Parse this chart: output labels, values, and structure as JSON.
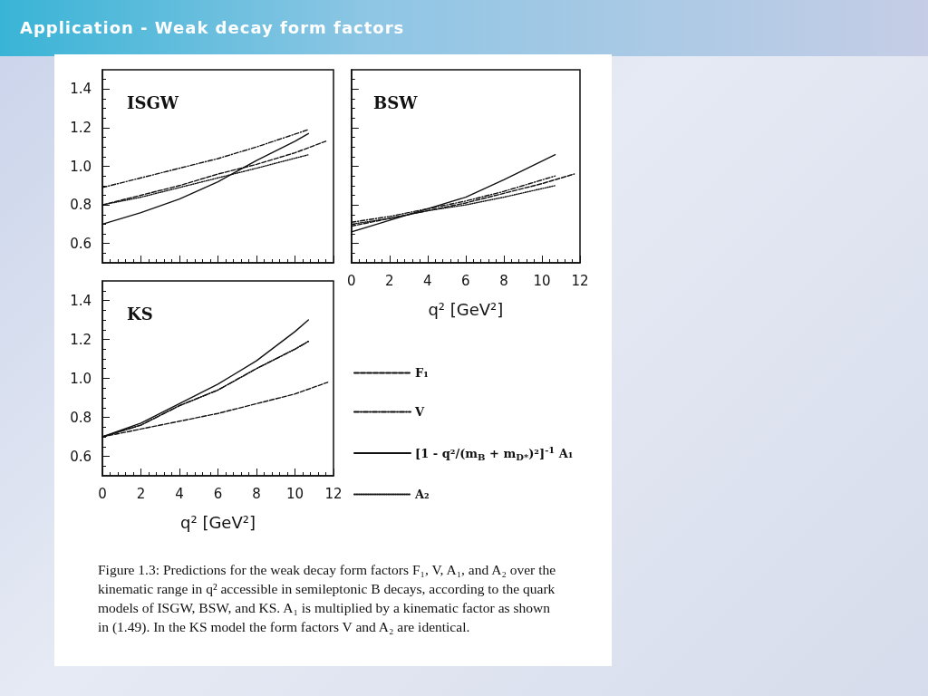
{
  "chart_data": [
    {
      "type": "line",
      "title": "ISGW",
      "annotations": [
        "Application  - Weak decay form factors"
      ],
      "xlim": [
        0,
        12
      ],
      "ylim": [
        0.5,
        1.5
      ],
      "xticks": [
        0,
        2,
        4,
        6,
        8,
        10,
        12
      ],
      "yticks": [
        0.6,
        0.8,
        {
          "value": 1,
          "label": "1.0"
        },
        1.2,
        1.4
      ],
      "tick_labels": "y",
      "grid": false,
      "marker": "none",
      "series": [
        {
          "color": "#111111",
          "line_style": "dashed",
          "x": [
            0,
            2,
            4,
            6,
            8,
            10,
            11.6
          ],
          "values": [
            0.8,
            0.85,
            0.9,
            0.96,
            1.01,
            1.07,
            1.13
          ]
        },
        {
          "color": "#111111",
          "line_style": "dashdot",
          "x": [
            0,
            2,
            4,
            6,
            8,
            10.7
          ],
          "values": [
            0.89,
            0.94,
            0.99,
            1.04,
            1.1,
            1.19
          ]
        },
        {
          "color": "#111111",
          "line_style": "solid",
          "x": [
            0,
            2,
            4,
            6,
            8,
            10,
            10.7
          ],
          "values": [
            0.7,
            0.76,
            0.83,
            0.92,
            1.03,
            1.13,
            1.17
          ]
        },
        {
          "color": "#111111",
          "line_style": "dotted",
          "x": [
            0,
            2,
            4,
            6,
            8,
            10.7
          ],
          "values": [
            0.8,
            0.84,
            0.89,
            0.94,
            0.99,
            1.06
          ]
        }
      ]
    },
    {
      "type": "line",
      "title": "BSW",
      "xlabel": "q² [GeV²]",
      "xlim": [
        0,
        12
      ],
      "ylim": [
        0.5,
        1.5
      ],
      "xticks": [
        0,
        2,
        4,
        6,
        8,
        10,
        12
      ],
      "yticks": [
        0.6,
        0.8,
        1,
        1.2,
        1.4
      ],
      "tick_labels": "x",
      "grid": false,
      "marker": "none",
      "series": [
        {
          "color": "#111111",
          "line_style": "dashed",
          "x": [
            0,
            2,
            4,
            6,
            8,
            10,
            11.7
          ],
          "values": [
            0.69,
            0.73,
            0.77,
            0.81,
            0.86,
            0.91,
            0.96
          ]
        },
        {
          "color": "#111111",
          "line_style": "dashdot",
          "x": [
            0,
            2,
            4,
            6,
            8,
            10.7
          ],
          "values": [
            0.71,
            0.74,
            0.78,
            0.82,
            0.87,
            0.95
          ]
        },
        {
          "color": "#111111",
          "line_style": "solid",
          "x": [
            0,
            2,
            4,
            6,
            8,
            10.7
          ],
          "values": [
            0.66,
            0.72,
            0.78,
            0.84,
            0.93,
            1.06
          ]
        },
        {
          "color": "#111111",
          "line_style": "dotted",
          "x": [
            0,
            2,
            4,
            6,
            8,
            10.7
          ],
          "values": [
            0.7,
            0.73,
            0.77,
            0.8,
            0.84,
            0.9
          ]
        }
      ]
    },
    {
      "type": "line",
      "title": "KS",
      "xlabel": "q² [GeV²]",
      "xlim": [
        0,
        12
      ],
      "ylim": [
        0.5,
        1.5
      ],
      "xticks": [
        0,
        2,
        4,
        6,
        8,
        10,
        12
      ],
      "yticks": [
        0.6,
        0.8,
        {
          "value": 1,
          "label": "1.0"
        },
        1.2,
        1.4
      ],
      "grid": false,
      "marker": "none",
      "legend": "right",
      "annotations": [
        "Figure 1.3: Predictions for the weak decay form factors F₁, V, A₁, and A₂ over the kinematic range in q² accessible in semileptonic B decays, according to the quark models of ISGW, BSW, and KS. A₁ is multiplied by a kinematic factor as shown in (1.49). In the KS model the form factors V and A₂ are identical."
      ],
      "series": [
        {
          "name": "F₁",
          "color": "#111111",
          "line_style": "dashed",
          "x": [
            0,
            2,
            4,
            6,
            8,
            10,
            11.7
          ],
          "values": [
            0.7,
            0.74,
            0.78,
            0.82,
            0.87,
            0.92,
            0.98
          ]
        },
        {
          "name": "V",
          "color": "#111111",
          "line_style": "dashdot",
          "x": [
            0,
            2,
            4,
            6,
            8,
            10,
            10.7
          ],
          "values": [
            0.7,
            0.76,
            0.86,
            0.94,
            1.05,
            1.15,
            1.19
          ]
        },
        {
          "name": "[1 - q²/(m$_{B}$ + m$_{D*}$)²]$^{-1}$ A₁",
          "color": "#111111",
          "line_style": "solid",
          "x": [
            0,
            2,
            4,
            6,
            8,
            10,
            10.7
          ],
          "values": [
            0.7,
            0.77,
            0.87,
            0.97,
            1.09,
            1.24,
            1.3
          ]
        },
        {
          "name": "A₂",
          "color": "#111111",
          "line_style": "dotted",
          "x": [
            0,
            2,
            4,
            6,
            8,
            10,
            10.7
          ],
          "values": [
            0.7,
            0.76,
            0.86,
            0.94,
            1.05,
            1.15,
            1.19
          ]
        }
      ]
    }
  ]
}
